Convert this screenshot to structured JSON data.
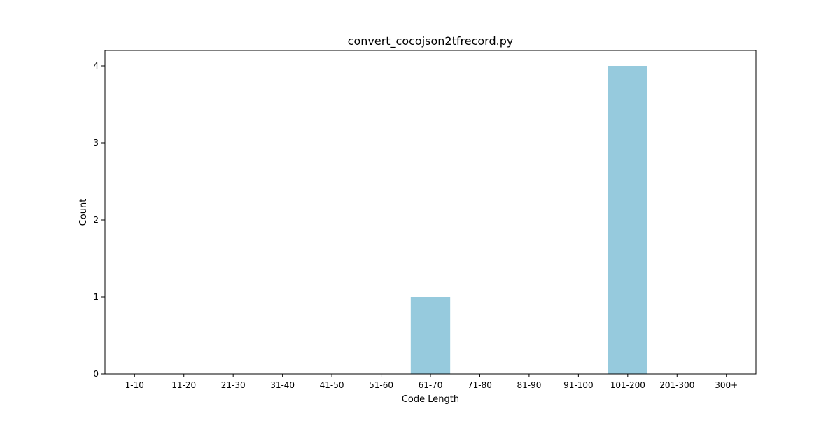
{
  "chart_data": {
    "type": "bar",
    "title": "convert_cocojson2tfrecord.py",
    "xlabel": "Code Length",
    "ylabel": "Count",
    "categories": [
      "1-10",
      "11-20",
      "21-30",
      "31-40",
      "41-50",
      "51-60",
      "61-70",
      "71-80",
      "81-90",
      "91-100",
      "101-200",
      "201-300",
      "300+"
    ],
    "values": [
      0,
      0,
      0,
      0,
      0,
      0,
      1,
      0,
      0,
      0,
      4,
      0,
      0
    ],
    "ylim": [
      0,
      4.2
    ],
    "yticks": [
      0,
      1,
      2,
      3,
      4
    ],
    "grid": false,
    "legend": "none",
    "bar_color": "#96cadd"
  }
}
